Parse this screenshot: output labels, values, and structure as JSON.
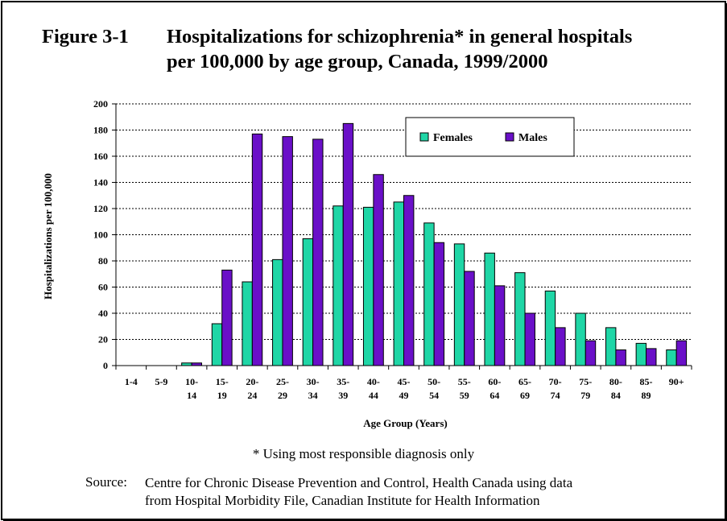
{
  "figure_label": "Figure 3-1",
  "title_line1": "Hospitalizations for schizophrenia* in general hospitals",
  "title_line2": "per 100,000 by age group, Canada, 1999/2000",
  "footnote": "* Using most responsible diagnosis only",
  "source_label": "Source:",
  "source_line1": "Centre for Chronic Disease Prevention and Control, Health Canada using data",
  "source_line2": "from Hospital Morbidity File, Canadian Institute for Health Information",
  "chart_data": {
    "type": "bar",
    "xlabel": "Age Group (Years)",
    "ylabel": "Hospitalizations per 100,000",
    "ylim": [
      0,
      200
    ],
    "yticks": [
      0,
      20,
      40,
      60,
      80,
      100,
      120,
      140,
      160,
      180,
      200
    ],
    "grid": "horizontal dotted",
    "legend_position": "top-right",
    "categories": [
      [
        "1-4"
      ],
      [
        "5-9"
      ],
      [
        "10-",
        "14"
      ],
      [
        "15-",
        "19"
      ],
      [
        "20-",
        "24"
      ],
      [
        "25-",
        "29"
      ],
      [
        "30-",
        "34"
      ],
      [
        "35-",
        "39"
      ],
      [
        "40-",
        "44"
      ],
      [
        "45-",
        "49"
      ],
      [
        "50-",
        "54"
      ],
      [
        "55-",
        "59"
      ],
      [
        "60-",
        "64"
      ],
      [
        "65-",
        "69"
      ],
      [
        "70-",
        "74"
      ],
      [
        "75-",
        "79"
      ],
      [
        "80-",
        "84"
      ],
      [
        "85-",
        "89"
      ],
      [
        "90+"
      ]
    ],
    "series": [
      {
        "name": "Females",
        "color": "#1fd6a6",
        "values": [
          0,
          0,
          2,
          32,
          64,
          81,
          97,
          122,
          121,
          125,
          109,
          93,
          86,
          71,
          57,
          40,
          29,
          17,
          12
        ]
      },
      {
        "name": "Males",
        "color": "#6a10c8",
        "values": [
          0,
          0,
          2,
          73,
          177,
          175,
          173,
          185,
          146,
          130,
          94,
          72,
          61,
          40,
          29,
          19,
          12,
          13,
          19
        ]
      }
    ]
  }
}
